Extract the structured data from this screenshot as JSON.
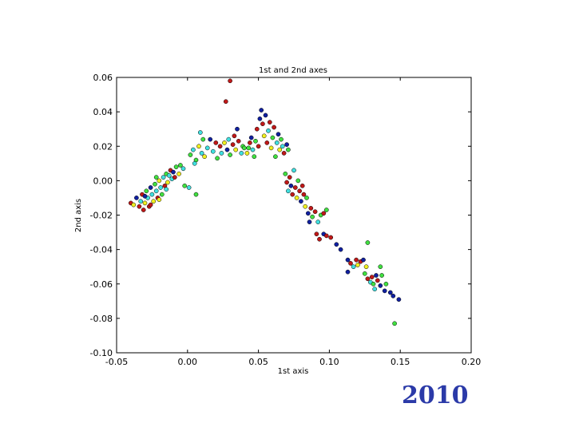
{
  "chart_data": {
    "type": "scatter",
    "title": "1st and 2nd axes",
    "xlabel": "1st axis",
    "ylabel": "2nd axis",
    "xlim": [
      -0.05,
      0.2
    ],
    "ylim": [
      -0.1,
      0.06
    ],
    "xticks": [
      "-0.05",
      "0.00",
      "0.05",
      "0.10",
      "0.15",
      "0.20"
    ],
    "yticks": [
      "0.06",
      "0.04",
      "0.02",
      "0.00",
      "-0.02",
      "-0.04",
      "-0.06",
      "-0.08",
      "-0.10"
    ],
    "grid": false,
    "colors": [
      "#1020a0",
      "#c01818",
      "#f0f020",
      "#40e0e0",
      "#40e040"
    ],
    "points": [
      [
        -0.04,
        -0.013,
        1
      ],
      [
        -0.038,
        -0.014,
        2
      ],
      [
        -0.036,
        -0.01,
        0
      ],
      [
        -0.034,
        -0.015,
        1
      ],
      [
        -0.033,
        -0.012,
        3
      ],
      [
        -0.032,
        -0.008,
        1
      ],
      [
        -0.031,
        -0.017,
        1
      ],
      [
        -0.03,
        -0.013,
        2
      ],
      [
        -0.029,
        -0.006,
        4
      ],
      [
        -0.028,
        -0.01,
        3
      ],
      [
        -0.027,
        -0.015,
        1
      ],
      [
        -0.026,
        -0.004,
        0
      ],
      [
        -0.025,
        -0.008,
        3
      ],
      [
        -0.024,
        -0.012,
        2
      ],
      [
        -0.023,
        -0.002,
        4
      ],
      [
        -0.022,
        -0.006,
        3
      ],
      [
        -0.021,
        -0.01,
        1
      ],
      [
        -0.02,
        0.0,
        2
      ],
      [
        -0.019,
        -0.004,
        3
      ],
      [
        -0.018,
        -0.008,
        4
      ],
      [
        -0.017,
        0.002,
        3
      ],
      [
        -0.016,
        -0.003,
        1
      ],
      [
        -0.015,
        0.004,
        4
      ],
      [
        -0.014,
        -0.001,
        2
      ],
      [
        -0.013,
        0.003,
        3
      ],
      [
        -0.012,
        0.006,
        1
      ],
      [
        -0.011,
        0.001,
        3
      ],
      [
        -0.01,
        0.005,
        0
      ],
      [
        -0.008,
        0.008,
        4
      ],
      [
        -0.006,
        0.004,
        2
      ],
      [
        -0.005,
        0.009,
        4
      ],
      [
        -0.003,
        0.007,
        3
      ],
      [
        -0.026,
        -0.014,
        1
      ],
      [
        -0.03,
        -0.009,
        0
      ],
      [
        -0.02,
        -0.011,
        2
      ],
      [
        -0.015,
        -0.005,
        3
      ],
      [
        -0.009,
        0.002,
        1
      ],
      [
        -0.022,
        0.002,
        4
      ],
      [
        -0.002,
        -0.003,
        4
      ],
      [
        0.001,
        -0.004,
        3
      ],
      [
        0.002,
        0.015,
        4
      ],
      [
        0.004,
        0.018,
        3
      ],
      [
        0.006,
        0.012,
        4
      ],
      [
        0.008,
        0.02,
        2
      ],
      [
        0.009,
        0.028,
        3
      ],
      [
        0.01,
        0.016,
        3
      ],
      [
        0.011,
        0.024,
        4
      ],
      [
        0.012,
        0.014,
        2
      ],
      [
        0.014,
        0.019,
        3
      ],
      [
        0.016,
        0.024,
        0
      ],
      [
        0.018,
        0.017,
        3
      ],
      [
        0.02,
        0.022,
        1
      ],
      [
        0.021,
        0.013,
        4
      ],
      [
        0.023,
        0.02,
        1
      ],
      [
        0.024,
        0.016,
        3
      ],
      [
        0.026,
        0.022,
        2
      ],
      [
        0.028,
        0.018,
        0
      ],
      [
        0.029,
        0.024,
        3
      ],
      [
        0.03,
        0.015,
        4
      ],
      [
        0.032,
        0.021,
        1
      ],
      [
        0.033,
        0.026,
        1
      ],
      [
        0.034,
        0.018,
        2
      ],
      [
        0.035,
        0.03,
        0
      ],
      [
        0.036,
        0.023,
        1
      ],
      [
        0.038,
        0.016,
        3
      ],
      [
        0.039,
        0.02,
        4
      ],
      [
        0.006,
        -0.008,
        4
      ],
      [
        0.005,
        0.01,
        3
      ],
      [
        0.04,
        0.019,
        4
      ],
      [
        0.042,
        0.016,
        2
      ],
      [
        0.044,
        0.022,
        1
      ],
      [
        0.045,
        0.025,
        0
      ],
      [
        0.046,
        0.018,
        3
      ],
      [
        0.048,
        0.023,
        4
      ],
      [
        0.049,
        0.03,
        1
      ],
      [
        0.05,
        0.02,
        1
      ],
      [
        0.051,
        0.036,
        0
      ],
      [
        0.052,
        0.041,
        0
      ],
      [
        0.053,
        0.033,
        1
      ],
      [
        0.054,
        0.026,
        2
      ],
      [
        0.055,
        0.038,
        0
      ],
      [
        0.056,
        0.022,
        1
      ],
      [
        0.057,
        0.029,
        3
      ],
      [
        0.058,
        0.034,
        1
      ],
      [
        0.059,
        0.019,
        2
      ],
      [
        0.06,
        0.025,
        4
      ],
      [
        0.061,
        0.031,
        1
      ],
      [
        0.062,
        0.014,
        4
      ],
      [
        0.063,
        0.022,
        3
      ],
      [
        0.064,
        0.027,
        0
      ],
      [
        0.065,
        0.018,
        2
      ],
      [
        0.066,
        0.024,
        4
      ],
      [
        0.067,
        0.02,
        3
      ],
      [
        0.068,
        0.016,
        1
      ],
      [
        0.07,
        0.021,
        0
      ],
      [
        0.071,
        0.018,
        4
      ],
      [
        0.043,
        0.019,
        4
      ],
      [
        0.047,
        0.014,
        4
      ],
      [
        0.03,
        0.058,
        1
      ],
      [
        0.027,
        0.046,
        1
      ],
      [
        0.069,
        0.004,
        4
      ],
      [
        0.07,
        -0.001,
        1
      ],
      [
        0.071,
        -0.006,
        3
      ],
      [
        0.072,
        0.002,
        1
      ],
      [
        0.073,
        -0.003,
        0
      ],
      [
        0.074,
        -0.008,
        1
      ],
      [
        0.075,
        0.006,
        3
      ],
      [
        0.076,
        -0.004,
        1
      ],
      [
        0.077,
        -0.01,
        2
      ],
      [
        0.078,
        0.0,
        4
      ],
      [
        0.079,
        -0.006,
        1
      ],
      [
        0.08,
        -0.012,
        0
      ],
      [
        0.081,
        -0.003,
        1
      ],
      [
        0.082,
        -0.008,
        1
      ],
      [
        0.083,
        -0.015,
        2
      ],
      [
        0.084,
        -0.01,
        4
      ],
      [
        0.085,
        -0.019,
        0
      ],
      [
        0.087,
        -0.016,
        1
      ],
      [
        0.088,
        -0.021,
        4
      ],
      [
        0.09,
        -0.018,
        1
      ],
      [
        0.092,
        -0.024,
        3
      ],
      [
        0.094,
        -0.02,
        4
      ],
      [
        0.096,
        -0.019,
        1
      ],
      [
        0.098,
        -0.017,
        4
      ],
      [
        0.086,
        -0.024,
        0
      ],
      [
        0.091,
        -0.031,
        1
      ],
      [
        0.093,
        -0.034,
        1
      ],
      [
        0.096,
        -0.031,
        0
      ],
      [
        0.098,
        -0.032,
        1
      ],
      [
        0.101,
        -0.033,
        1
      ],
      [
        0.105,
        -0.037,
        0
      ],
      [
        0.108,
        -0.04,
        0
      ],
      [
        0.113,
        -0.046,
        0
      ],
      [
        0.115,
        -0.048,
        1
      ],
      [
        0.117,
        -0.05,
        3
      ],
      [
        0.119,
        -0.046,
        1
      ],
      [
        0.12,
        -0.049,
        2
      ],
      [
        0.122,
        -0.047,
        1
      ],
      [
        0.124,
        -0.046,
        0
      ],
      [
        0.113,
        -0.053,
        0
      ],
      [
        0.125,
        -0.054,
        4
      ],
      [
        0.127,
        -0.057,
        1
      ],
      [
        0.129,
        -0.059,
        3
      ],
      [
        0.13,
        -0.056,
        1
      ],
      [
        0.131,
        -0.06,
        4
      ],
      [
        0.132,
        -0.063,
        3
      ],
      [
        0.133,
        -0.055,
        0
      ],
      [
        0.134,
        -0.058,
        1
      ],
      [
        0.136,
        -0.061,
        0
      ],
      [
        0.137,
        -0.055,
        4
      ],
      [
        0.139,
        -0.064,
        0
      ],
      [
        0.14,
        -0.06,
        4
      ],
      [
        0.143,
        -0.065,
        0
      ],
      [
        0.145,
        -0.067,
        0
      ],
      [
        0.149,
        -0.069,
        0
      ],
      [
        0.127,
        -0.036,
        4
      ],
      [
        0.146,
        -0.083,
        4
      ],
      [
        0.126,
        -0.05,
        2
      ],
      [
        0.136,
        -0.05,
        4
      ]
    ]
  },
  "slide": {
    "year": "2010"
  }
}
